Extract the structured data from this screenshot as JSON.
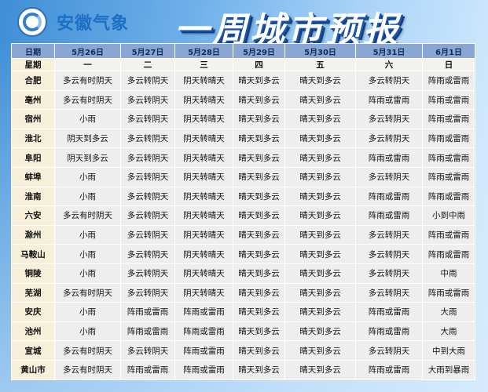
{
  "header": {
    "brand": "安徽气象",
    "title": "一周城市预报"
  },
  "table": {
    "date_label": "日期",
    "week_label": "星期",
    "dates": [
      "5月26日",
      "5月27日",
      "5月28日",
      "5月29日",
      "5月30日",
      "5月31日",
      "6月1日"
    ],
    "weekdays": [
      "一",
      "二",
      "三",
      "四",
      "五",
      "六",
      "日"
    ],
    "rows": [
      {
        "city": "合肥",
        "f": [
          "多云有时阴天",
          "多云转阴天",
          "阴天转晴天",
          "晴天到多云",
          "晴天到多云",
          "多云转阴天",
          "阵雨或雷雨"
        ]
      },
      {
        "city": "亳州",
        "f": [
          "多云有时阴天",
          "多云转阴天",
          "阴天转晴天",
          "晴天到多云",
          "晴天到多云",
          "阵雨或雷雨",
          "阵雨或雷雨"
        ]
      },
      {
        "city": "宿州",
        "f": [
          "小雨",
          "多云转阴天",
          "阴天转晴天",
          "晴天到多云",
          "晴天到多云",
          "多云转阴天",
          "阵雨或雷雨"
        ]
      },
      {
        "city": "淮北",
        "f": [
          "阴天到多云",
          "多云转阴天",
          "阴天转晴天",
          "晴天到多云",
          "晴天到多云",
          "多云转阴天",
          "阵雨或雷雨"
        ]
      },
      {
        "city": "阜阳",
        "f": [
          "阴天到多云",
          "多云转阴天",
          "阴天转晴天",
          "晴天到多云",
          "晴天到多云",
          "阵雨或雷雨",
          "阵雨或雷雨"
        ]
      },
      {
        "city": "蚌埠",
        "f": [
          "小雨",
          "多云转阴天",
          "阴天转晴天",
          "晴天到多云",
          "晴天到多云",
          "多云转阴天",
          "阵雨或雷雨"
        ]
      },
      {
        "city": "淮南",
        "f": [
          "小雨",
          "多云转阴天",
          "阴天转晴天",
          "晴天到多云",
          "晴天到多云",
          "阵雨或雷雨",
          "阵雨或雷雨"
        ]
      },
      {
        "city": "六安",
        "f": [
          "多云有时阴天",
          "多云转阴天",
          "阴天转晴天",
          "晴天到多云",
          "晴天到多云",
          "阵雨或雷雨",
          "小到中雨"
        ]
      },
      {
        "city": "滁州",
        "f": [
          "小雨",
          "多云转阴天",
          "阴天转晴天",
          "晴天到多云",
          "晴天到多云",
          "多云转阴天",
          "阵雨或雷雨"
        ]
      },
      {
        "city": "马鞍山",
        "f": [
          "小雨",
          "多云转阴天",
          "阴天转晴天",
          "晴天到多云",
          "晴天到多云",
          "多云转阴天",
          "阵雨或雷雨"
        ]
      },
      {
        "city": "铜陵",
        "f": [
          "小雨",
          "多云转阴天",
          "阴天转晴天",
          "晴天到多云",
          "晴天到多云",
          "多云转阴天",
          "中雨"
        ]
      },
      {
        "city": "芜湖",
        "f": [
          "多云有时阴天",
          "多云转阴天",
          "阴天转晴天",
          "晴天到多云",
          "晴天到多云",
          "多云转阴天",
          "阵雨或雷雨"
        ]
      },
      {
        "city": "安庆",
        "f": [
          "小雨",
          "阵雨或雷雨",
          "阵雨或雷雨",
          "晴天到多云",
          "晴天到多云",
          "阵雨或雷雨",
          "大雨"
        ]
      },
      {
        "city": "池州",
        "f": [
          "小雨",
          "阵雨或雷雨",
          "阵雨或雷雨",
          "晴天到多云",
          "晴天到多云",
          "阵雨或雷雨",
          "大雨"
        ]
      },
      {
        "city": "宣城",
        "f": [
          "多云有时阴天",
          "多云转阴天",
          "阵雨或雷雨",
          "晴天到多云",
          "晴天到多云",
          "多云转阴天",
          "中到大雨"
        ]
      },
      {
        "city": "黄山市",
        "f": [
          "多云有时阴天",
          "阵雨或雷雨",
          "阵雨或雷雨",
          "晴天到多云",
          "晴天到多云",
          "阵雨或雷雨",
          "大雨到暴雨"
        ]
      }
    ]
  }
}
